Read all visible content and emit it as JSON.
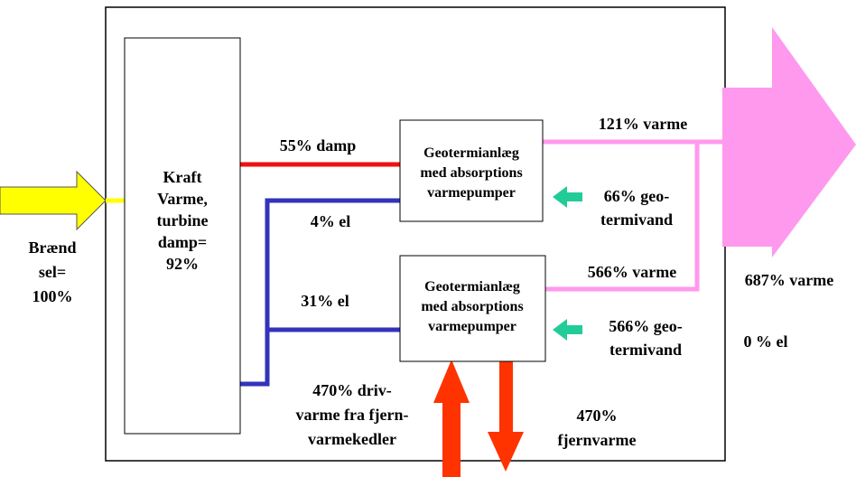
{
  "boxes": [
    {
      "lines": [
        "Kraft",
        "Varme,",
        "turbine",
        "damp=",
        "92%"
      ]
    },
    {
      "lines": [
        "Geotermianlæg",
        "med absorptions",
        "varmepumper"
      ]
    },
    {
      "lines": [
        "Geotermianlæg",
        "med absorptions",
        "varmepumper"
      ]
    }
  ],
  "labels": [
    {
      "lines": [
        "Brænd",
        "sel=",
        "100%"
      ]
    },
    {
      "lines": [
        "55% damp"
      ]
    },
    {
      "lines": [
        "4% el"
      ]
    },
    {
      "lines": [
        "31% el"
      ]
    },
    {
      "lines": [
        "470% driv-",
        "varme fra fjern-",
        "varmekedler"
      ]
    },
    {
      "lines": [
        "121% varme"
      ]
    },
    {
      "lines": [
        "66% geo-",
        "termivand"
      ]
    },
    {
      "lines": [
        "566% varme"
      ]
    },
    {
      "lines": [
        "566% geo-",
        "termivand"
      ]
    },
    {
      "lines": [
        "470%",
        "fjernvarme"
      ]
    },
    {
      "lines": [
        "687% varme"
      ]
    },
    {
      "lines": [
        "0 % el"
      ]
    }
  ]
}
